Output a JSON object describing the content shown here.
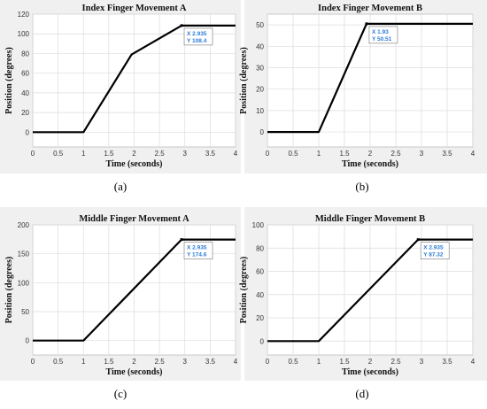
{
  "chart_data": [
    {
      "type": "line",
      "title": "Index Finger Movement A",
      "xlabel": "Time (seconds)",
      "ylabel": "Position (degrees)",
      "xlim": [
        0,
        4
      ],
      "ylim": [
        -15,
        120
      ],
      "xticks": [
        0,
        0.5,
        1,
        1.5,
        2,
        2.5,
        3,
        3.5,
        4
      ],
      "yticks": [
        0,
        20,
        40,
        60,
        80,
        100,
        120
      ],
      "x": [
        0,
        1,
        1.95,
        2.935,
        4
      ],
      "y": [
        0,
        0,
        79,
        108.4,
        108.4
      ],
      "grid": true,
      "datatip": {
        "x_label": "X",
        "x": "2.935",
        "y_label": "Y",
        "y": "108.4"
      },
      "caption": "(a)"
    },
    {
      "type": "line",
      "title": "Index Finger Movement B",
      "xlabel": "Time (seconds)",
      "ylabel": "Position (degrees)",
      "xlim": [
        0,
        4
      ],
      "ylim": [
        -7,
        55
      ],
      "xticks": [
        0,
        0.5,
        1,
        1.5,
        2,
        2.5,
        3,
        3.5,
        4
      ],
      "yticks": [
        0,
        10,
        20,
        30,
        40,
        50
      ],
      "x": [
        0,
        1,
        1.93,
        4
      ],
      "y": [
        0,
        0,
        50.51,
        50.51
      ],
      "grid": true,
      "datatip": {
        "x_label": "X",
        "x": "1.93",
        "y_label": "Y",
        "y": "50.51"
      },
      "caption": "(b)"
    },
    {
      "type": "line",
      "title": "Middle Finger Movement A",
      "xlabel": "Time (seconds)",
      "ylabel": "Position (degrees)",
      "xlim": [
        0,
        4
      ],
      "ylim": [
        -25,
        200
      ],
      "xticks": [
        0,
        0.5,
        1,
        1.5,
        2,
        2.5,
        3,
        3.5,
        4
      ],
      "yticks": [
        0,
        50,
        100,
        150,
        200
      ],
      "x": [
        0,
        1,
        2.935,
        4
      ],
      "y": [
        0,
        0,
        174.6,
        174.6
      ],
      "grid": true,
      "datatip": {
        "x_label": "X",
        "x": "2.935",
        "y_label": "Y",
        "y": "174.6"
      },
      "caption": "(c)"
    },
    {
      "type": "line",
      "title": "Middle Finger Movement B",
      "xlabel": "Time (seconds)",
      "ylabel": "Position (degrees)",
      "xlim": [
        0,
        4
      ],
      "ylim": [
        -12,
        100
      ],
      "xticks": [
        0,
        0.5,
        1,
        1.5,
        2,
        2.5,
        3,
        3.5,
        4
      ],
      "yticks": [
        0,
        20,
        40,
        60,
        80,
        100
      ],
      "x": [
        0,
        1,
        2.935,
        4
      ],
      "y": [
        0,
        0,
        87.32,
        87.32
      ],
      "grid": true,
      "datatip": {
        "x_label": "X",
        "x": "2.935",
        "y_label": "Y",
        "y": "87.32"
      },
      "caption": "(d)"
    }
  ]
}
